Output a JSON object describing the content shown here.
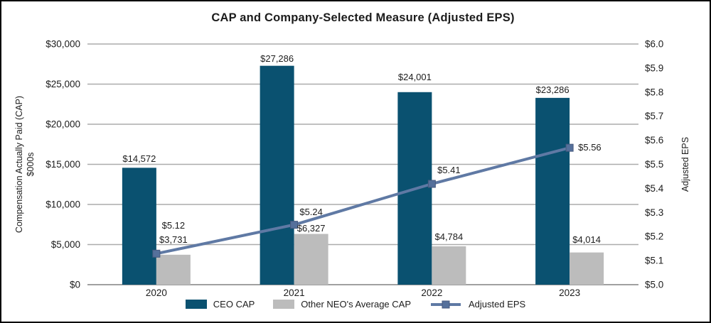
{
  "title": "CAP and Company-Selected Measure (Adjusted EPS)",
  "chart_data": {
    "type": "bar",
    "subtype": "combo bar + line, dual axis",
    "title": "CAP and Company-Selected Measure (Adjusted EPS)",
    "categories": [
      "2020",
      "2021",
      "2022",
      "2023"
    ],
    "series": [
      {
        "name": "CEO CAP",
        "type": "bar",
        "axis": "left",
        "color": "#0a5170",
        "values": [
          14572,
          27286,
          24001,
          23286
        ],
        "labels": [
          "$14,572",
          "$27,286",
          "$24,001",
          "$23,286"
        ]
      },
      {
        "name": "Other NEO's Average CAP",
        "type": "bar",
        "axis": "left",
        "color": "#bcbcbc",
        "values": [
          3731,
          6327,
          4784,
          4014
        ],
        "labels": [
          "$3,731",
          "$6,327",
          "$4,784",
          "$4,014"
        ]
      },
      {
        "name": "Adjusted EPS",
        "type": "line",
        "axis": "right",
        "color": "#5f79a4",
        "marker_color": "#55709b",
        "values": [
          5.12,
          5.24,
          5.41,
          5.56
        ],
        "labels": [
          "$5.12",
          "$5.24",
          "$5.41",
          "$5.56"
        ]
      }
    ],
    "axes": {
      "left": {
        "title_line1": "Compensation Actually Paid (CAP)",
        "title_line2": "$000s",
        "min": 0,
        "max": 30000,
        "step": 5000,
        "tick_labels": [
          "$0",
          "$5,000",
          "$10,000",
          "$15,000",
          "$20,000",
          "$25,000",
          "$30,000"
        ]
      },
      "right": {
        "title": "Adjusted EPS",
        "min": 5.0,
        "max": 6.0,
        "step": 0.1,
        "tick_labels": [
          "$5.0",
          "$5.1",
          "$5.2",
          "$5.3",
          "$5.4",
          "$5.5",
          "$5.6",
          "$5.7",
          "$5.8",
          "$5.9",
          "$6.0"
        ]
      },
      "x": {
        "labels": [
          "2020",
          "2021",
          "2022",
          "2023"
        ]
      }
    },
    "grid": true,
    "gridline_color": "#ababab",
    "legend_position": "bottom"
  }
}
